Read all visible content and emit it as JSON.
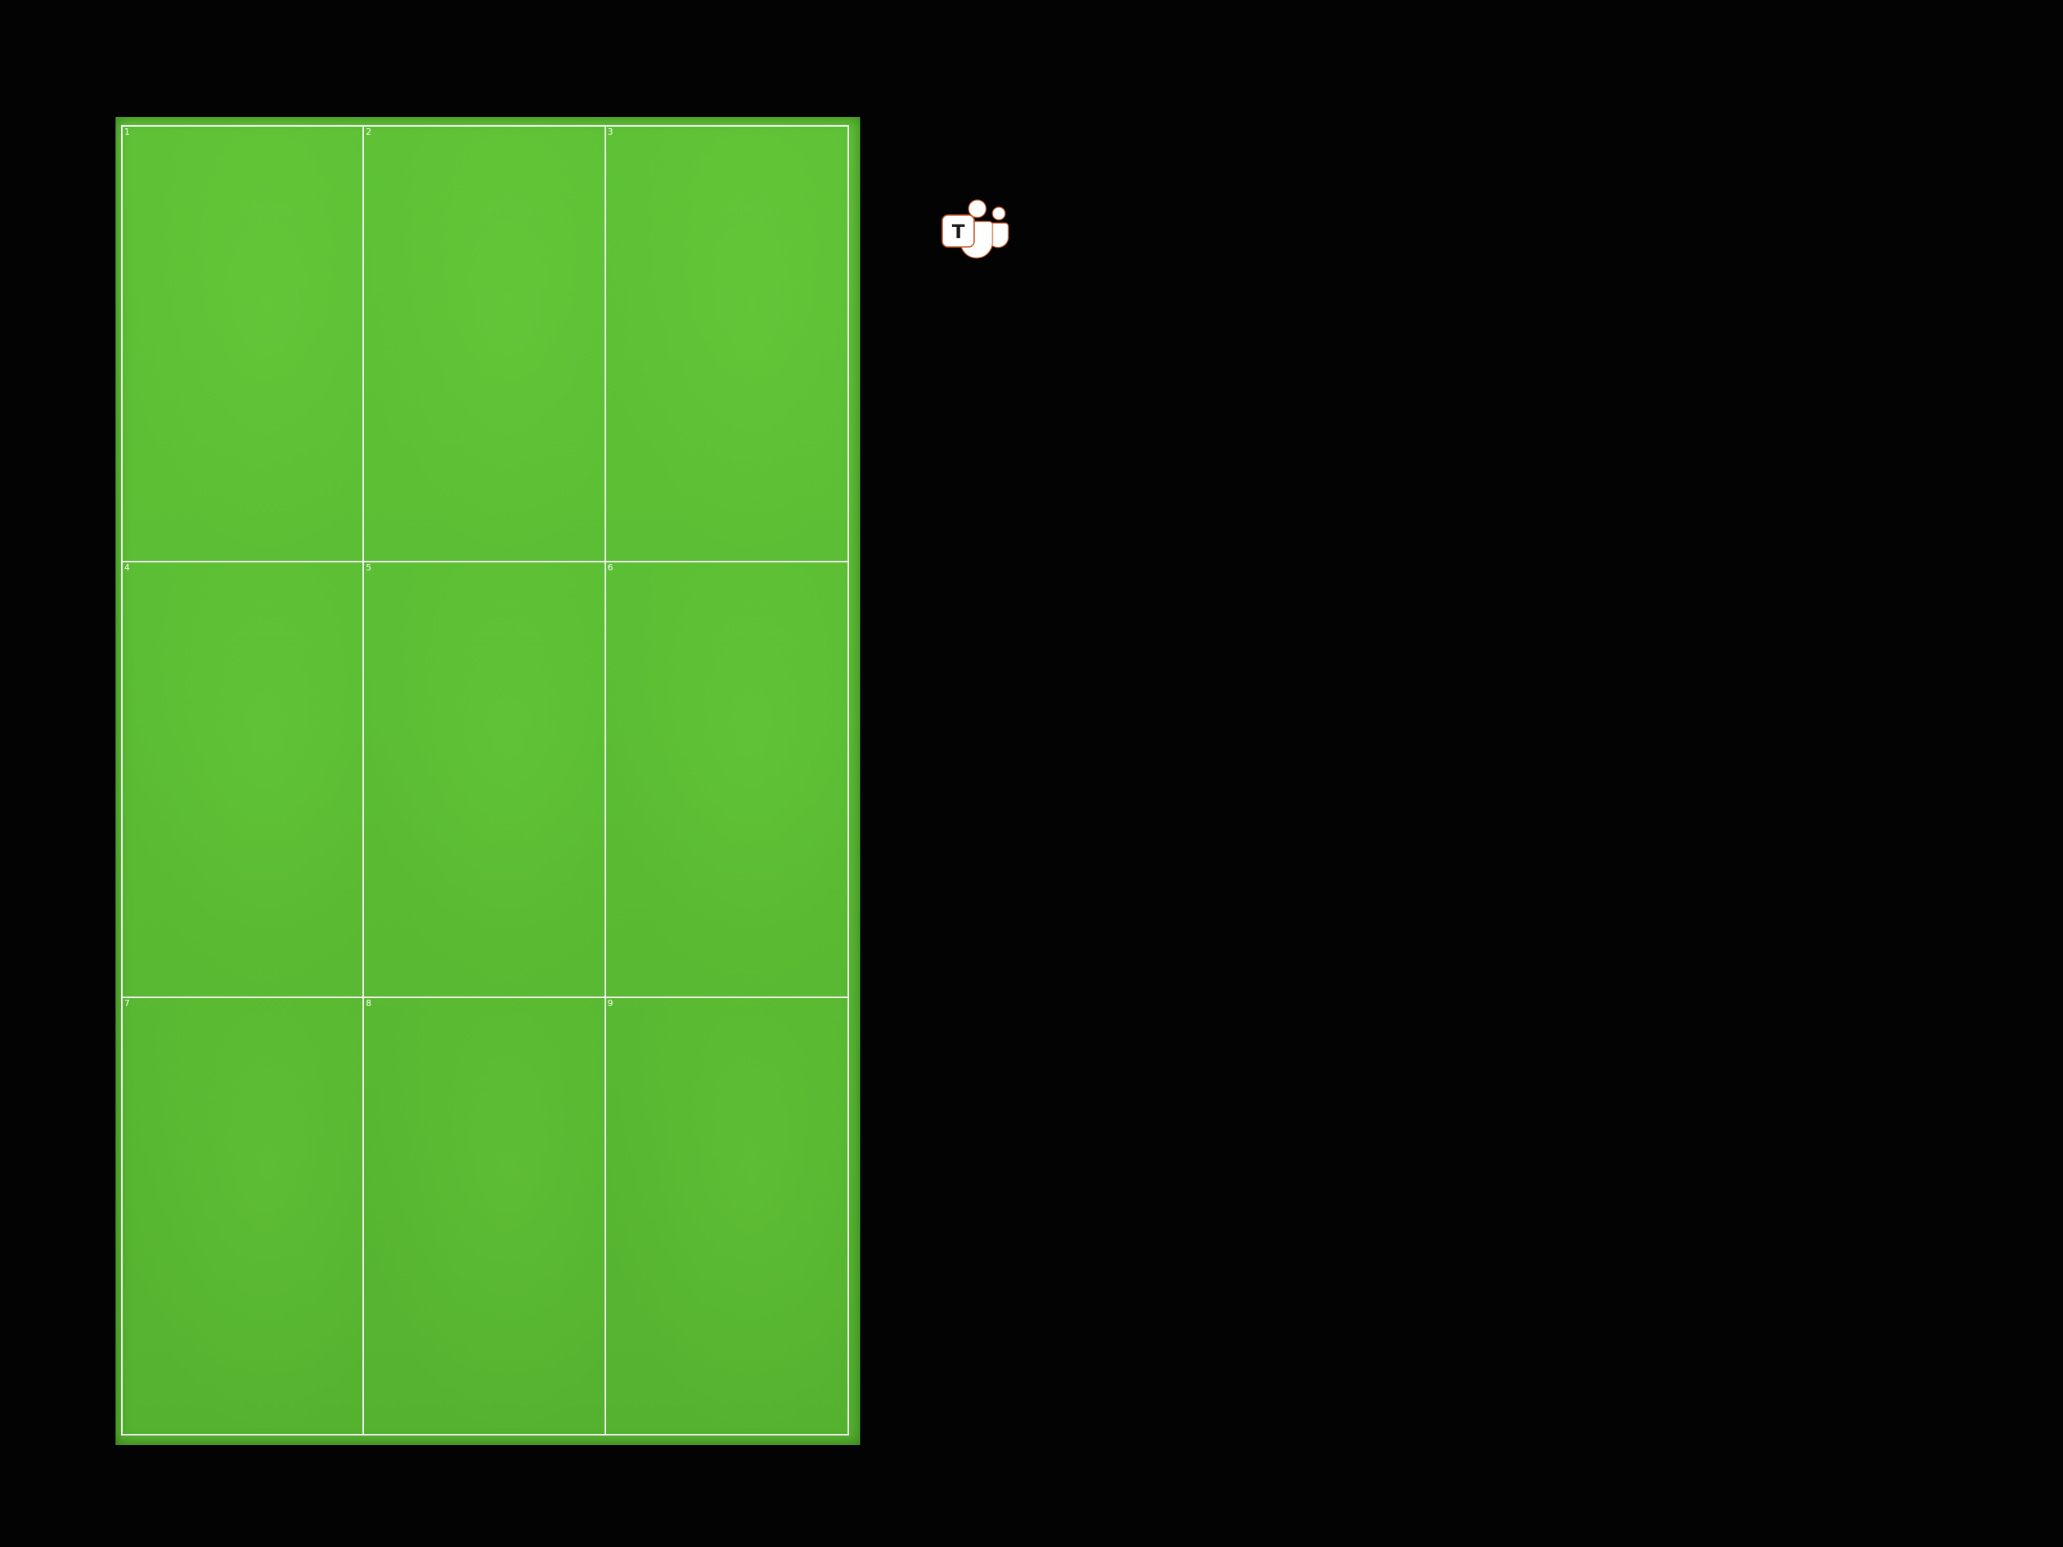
{
  "display": {
    "background_color": "#030303",
    "panel_color": "#5cbf34",
    "grid_line_color": "#f2f2f2"
  },
  "grid": {
    "rows": 3,
    "columns": 3,
    "cells": [
      {
        "label": "1"
      },
      {
        "label": "2"
      },
      {
        "label": "3"
      },
      {
        "label": "4"
      },
      {
        "label": "5"
      },
      {
        "label": "6"
      },
      {
        "label": "7"
      },
      {
        "label": "8"
      },
      {
        "label": "9"
      }
    ]
  },
  "app_icon": {
    "name": "microsoft-teams-icon",
    "letter": "T"
  }
}
